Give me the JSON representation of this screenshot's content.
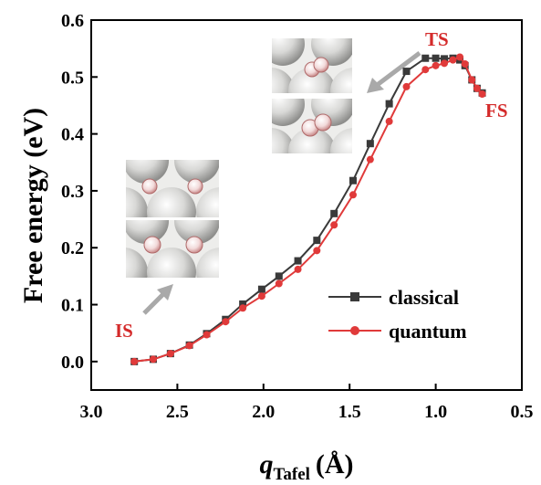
{
  "chart_data": {
    "type": "line",
    "xlabel": "q",
    "xlabel_sub": "Tafel",
    "xlabel_unit": "(Å)",
    "ylabel": "Free energy (eV)",
    "xlim": [
      3.0,
      0.5
    ],
    "ylim": [
      -0.05,
      0.6
    ],
    "x_reversed": true,
    "xticks": [
      "3.0",
      "2.5",
      "2.0",
      "1.5",
      "1.0",
      "0.5"
    ],
    "yticks": [
      "0.0",
      "0.1",
      "0.2",
      "0.3",
      "0.4",
      "0.5",
      "0.6"
    ],
    "legend_position": "lower-right",
    "series": [
      {
        "name": "classical",
        "color": "#3a3a3a",
        "marker": "square",
        "x": [
          2.75,
          2.64,
          2.54,
          2.43,
          2.33,
          2.22,
          2.12,
          2.01,
          1.91,
          1.8,
          1.69,
          1.59,
          1.48,
          1.38,
          1.27,
          1.17,
          1.06,
          1.0,
          0.95,
          0.9,
          0.86,
          0.83,
          0.79,
          0.76,
          0.73
        ],
        "y": [
          0.0,
          0.004,
          0.014,
          0.029,
          0.049,
          0.074,
          0.101,
          0.127,
          0.15,
          0.177,
          0.213,
          0.26,
          0.318,
          0.383,
          0.453,
          0.51,
          0.533,
          0.533,
          0.532,
          0.533,
          0.53,
          0.52,
          0.495,
          0.48,
          0.472
        ]
      },
      {
        "name": "quantum",
        "color": "#e03a3a",
        "marker": "circle",
        "x": [
          2.75,
          2.64,
          2.54,
          2.43,
          2.33,
          2.22,
          2.12,
          2.01,
          1.91,
          1.8,
          1.69,
          1.59,
          1.48,
          1.38,
          1.27,
          1.17,
          1.06,
          1.0,
          0.95,
          0.9,
          0.86,
          0.83,
          0.79,
          0.76,
          0.73
        ],
        "y": [
          0.0,
          0.004,
          0.014,
          0.028,
          0.047,
          0.07,
          0.094,
          0.115,
          0.137,
          0.162,
          0.195,
          0.24,
          0.293,
          0.355,
          0.422,
          0.483,
          0.513,
          0.52,
          0.524,
          0.53,
          0.535,
          0.523,
          0.495,
          0.48,
          0.47
        ]
      }
    ],
    "annotations": [
      {
        "text": "TS",
        "color": "#d42a2a"
      },
      {
        "text": "FS",
        "color": "#d42a2a"
      },
      {
        "text": "IS",
        "color": "#d42a2a"
      }
    ]
  }
}
